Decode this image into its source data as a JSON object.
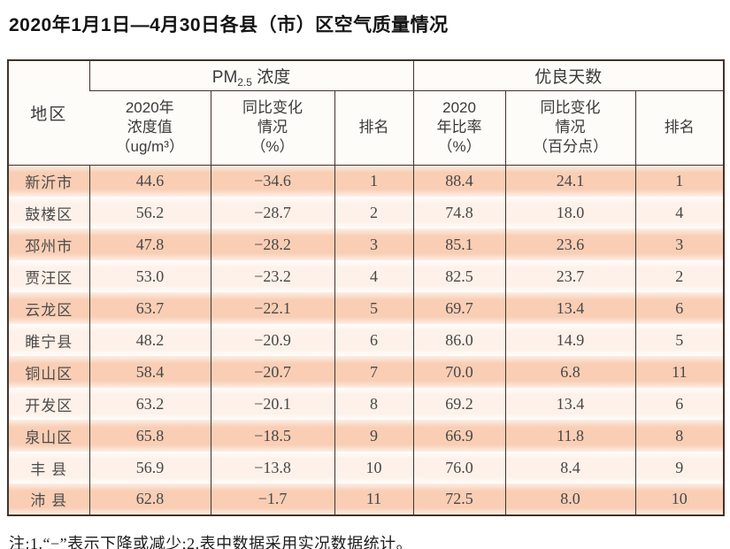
{
  "colors": {
    "border": "#43322b",
    "stripe_dark": "#f9ceb5",
    "stripe_light": "#fdf1e9",
    "header_bg": "#fefcf8"
  },
  "chart_data": {
    "type": "table",
    "title": "2020年1月1日—4月30日各县（市）区空气质量情况",
    "region_header": "地区",
    "column_groups": [
      {
        "prefix": "PM",
        "sub": "2.5",
        "suffix": " 浓度",
        "span": 3
      },
      {
        "label": "优良天数",
        "span": 3
      }
    ],
    "sub_headers": [
      "2020年\n浓度值\n（ug/m³）",
      "同比变化\n情况\n（%）",
      "排名",
      "2020\n年比率\n（%）",
      "同比变化\n情况\n（百分点）",
      "排名"
    ],
    "columns": [
      "region",
      "pm25_value_2020",
      "pm25_yoy_change_pct",
      "pm25_rank",
      "good_days_rate_2020_pct",
      "good_days_yoy_change_pts",
      "good_days_rank"
    ],
    "rows": [
      [
        "新沂市",
        "44.6",
        "−34.6",
        "1",
        "88.4",
        "24.1",
        "1"
      ],
      [
        "鼓楼区",
        "56.2",
        "−28.7",
        "2",
        "74.8",
        "18.0",
        "4"
      ],
      [
        "邳州市",
        "47.8",
        "−28.2",
        "3",
        "85.1",
        "23.6",
        "3"
      ],
      [
        "贾汪区",
        "53.0",
        "−23.2",
        "4",
        "82.5",
        "23.7",
        "2"
      ],
      [
        "云龙区",
        "63.7",
        "−22.1",
        "5",
        "69.7",
        "13.4",
        "6"
      ],
      [
        "睢宁县",
        "48.2",
        "−20.9",
        "6",
        "86.0",
        "14.9",
        "5"
      ],
      [
        "铜山区",
        "58.4",
        "−20.7",
        "7",
        "70.0",
        "6.8",
        "11"
      ],
      [
        "开发区",
        "63.2",
        "−20.1",
        "8",
        "69.2",
        "13.4",
        "6"
      ],
      [
        "泉山区",
        "65.8",
        "−18.5",
        "9",
        "66.9",
        "11.8",
        "8"
      ],
      [
        "丰 县",
        "56.9",
        "−13.8",
        "10",
        "76.0",
        "8.4",
        "9"
      ],
      [
        "沛 县",
        "62.8",
        "−1.7",
        "11",
        "72.5",
        "8.0",
        "10"
      ]
    ]
  },
  "note": "注:1.“−”表示下降或减少;2.表中数据采用实况数据统计。"
}
